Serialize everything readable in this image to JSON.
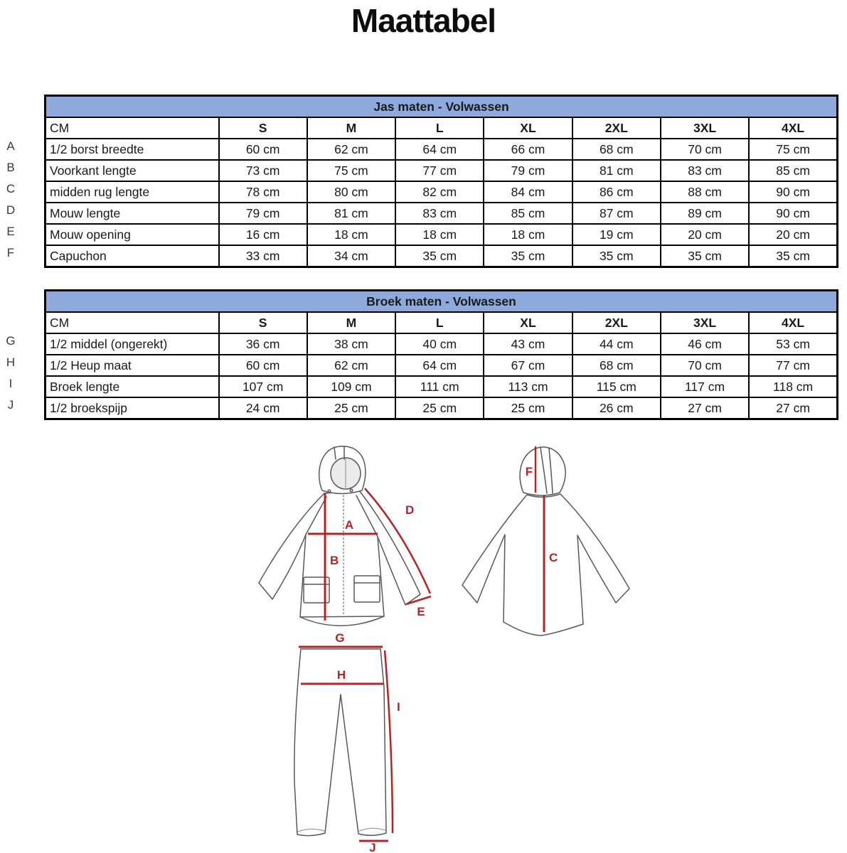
{
  "title": "Maattabel",
  "colors": {
    "table_header_bg": "#8EA9DB",
    "table_header_text": "#1F3864",
    "table_border": "#000000",
    "measure_line": "#B32427",
    "garment_outline": "#58585A"
  },
  "tables": [
    {
      "name": "jacket",
      "title": "Jas maten - Volwassen",
      "unit_header": "CM",
      "sizes": [
        "S",
        "M",
        "L",
        "XL",
        "2XL",
        "3XL",
        "4XL"
      ],
      "rows": [
        {
          "letter": "A",
          "label": "1/2 borst breedte",
          "values": [
            "60 cm",
            "62 cm",
            "64 cm",
            "66 cm",
            "68 cm",
            "70 cm",
            "75 cm"
          ]
        },
        {
          "letter": "B",
          "label": "Voorkant lengte",
          "values": [
            "73 cm",
            "75 cm",
            "77 cm",
            "79 cm",
            "81 cm",
            "83 cm",
            "85 cm"
          ]
        },
        {
          "letter": "C",
          "label": "midden rug lengte",
          "values": [
            "78 cm",
            "80 cm",
            "82 cm",
            "84 cm",
            "86 cm",
            "88 cm",
            "90 cm"
          ]
        },
        {
          "letter": "D",
          "label": "Mouw lengte",
          "values": [
            "79 cm",
            "81 cm",
            "83 cm",
            "85 cm",
            "87 cm",
            "89 cm",
            "90 cm"
          ]
        },
        {
          "letter": "E",
          "label": "Mouw opening",
          "values": [
            "16 cm",
            "18 cm",
            "18 cm",
            "18 cm",
            "19 cm",
            "20 cm",
            "20 cm"
          ]
        },
        {
          "letter": "F",
          "label": "Capuchon",
          "values": [
            "33 cm",
            "34 cm",
            "35 cm",
            "35 cm",
            "35 cm",
            "35 cm",
            "35 cm"
          ]
        }
      ]
    },
    {
      "name": "pants",
      "title": "Broek maten - Volwassen",
      "unit_header": "CM",
      "sizes": [
        "S",
        "M",
        "L",
        "XL",
        "2XL",
        "3XL",
        "4XL"
      ],
      "rows": [
        {
          "letter": "G",
          "label": "1/2 middel (ongerekt)",
          "values": [
            "36 cm",
            "38 cm",
            "40 cm",
            "43 cm",
            "44 cm",
            "46 cm",
            "53 cm"
          ]
        },
        {
          "letter": "H",
          "label": "1/2 Heup maat",
          "values": [
            "60 cm",
            "62 cm",
            "64 cm",
            "67 cm",
            "68 cm",
            "70 cm",
            "77 cm"
          ]
        },
        {
          "letter": "I",
          "label": "Broek lengte",
          "values": [
            "107 cm",
            "109 cm",
            "111 cm",
            "113 cm",
            "115 cm",
            "117 cm",
            "118 cm"
          ]
        },
        {
          "letter": "J",
          "label": "1/2 broekspijp",
          "values": [
            "24 cm",
            "25 cm",
            "25 cm",
            "25 cm",
            "26 cm",
            "27 cm",
            "27 cm"
          ]
        }
      ]
    }
  ],
  "diagram": {
    "front": {
      "A": "A",
      "B": "B",
      "D": "D",
      "E": "E"
    },
    "back": {
      "F": "F",
      "C": "C"
    },
    "pants": {
      "G": "G",
      "H": "H",
      "I": "I",
      "J": "J"
    }
  }
}
